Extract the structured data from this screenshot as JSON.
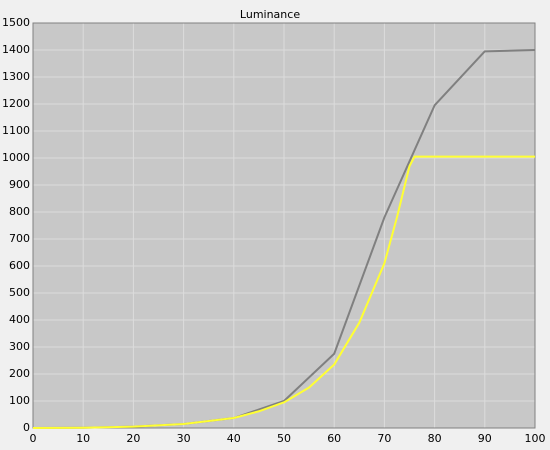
{
  "chart_data": {
    "type": "line",
    "title": "Luminance",
    "xlim": [
      0,
      100
    ],
    "xticks": [
      0,
      10,
      20,
      30,
      40,
      50,
      60,
      70,
      80,
      90,
      100
    ],
    "ylim": [
      0,
      1500
    ],
    "yticks": [
      0,
      100,
      200,
      300,
      400,
      500,
      600,
      700,
      800,
      900,
      1000,
      1100,
      1200,
      1300,
      1400,
      1500
    ],
    "grid": true,
    "series": [
      {
        "color": "#808080",
        "x": [
          0,
          10,
          20,
          30,
          40,
          50,
          60,
          70,
          80,
          90,
          100
        ],
        "values": [
          0,
          1,
          5,
          15,
          37,
          100,
          275,
          780,
          1195,
          1395,
          1400
        ]
      },
      {
        "color": "#ffff33",
        "x": [
          0,
          10,
          20,
          30,
          40,
          45,
          50,
          55,
          60,
          65,
          70,
          72.5,
          75,
          76,
          80,
          90,
          100
        ],
        "values": [
          0,
          1,
          5,
          15,
          37,
          62,
          95,
          150,
          235,
          390,
          610,
          780,
          970,
          1005,
          1005,
          1005,
          1005
        ]
      }
    ]
  }
}
